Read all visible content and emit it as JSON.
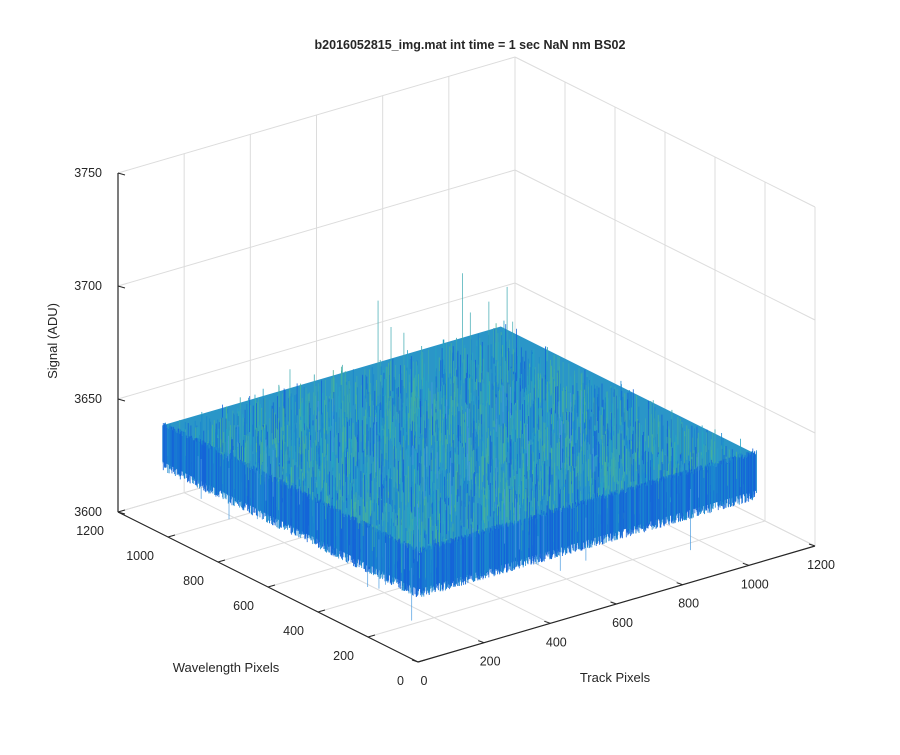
{
  "chart_data": {
    "type": "surface",
    "title": "b2016052815_img.mat int time = 1 sec  NaN nm BS02",
    "xlabel": "Track Pixels",
    "ylabel": "Wavelength Pixels",
    "zlabel": "Signal (ADU)",
    "xlim": [
      0,
      1200
    ],
    "ylim": [
      0,
      1200
    ],
    "zlim": [
      3600,
      3750
    ],
    "xticks": [
      "0",
      "200",
      "400",
      "600",
      "800",
      "1000",
      "1200"
    ],
    "yticks": [
      "0",
      "200",
      "400",
      "600",
      "800",
      "1000",
      "1200"
    ],
    "zticks": [
      "3600",
      "3650",
      "3700",
      "3750"
    ],
    "grid": true,
    "surface": {
      "x_range": [
        1,
        1024
      ],
      "y_range": [
        1,
        1024
      ],
      "mean_signal": 3640,
      "noise_amplitude": 8,
      "spike_max": 3688,
      "spike_min": 3612,
      "colormap": [
        "#1565d8",
        "#1a86cf",
        "#27a3c4",
        "#3aa8b0",
        "#46b29a"
      ]
    }
  }
}
